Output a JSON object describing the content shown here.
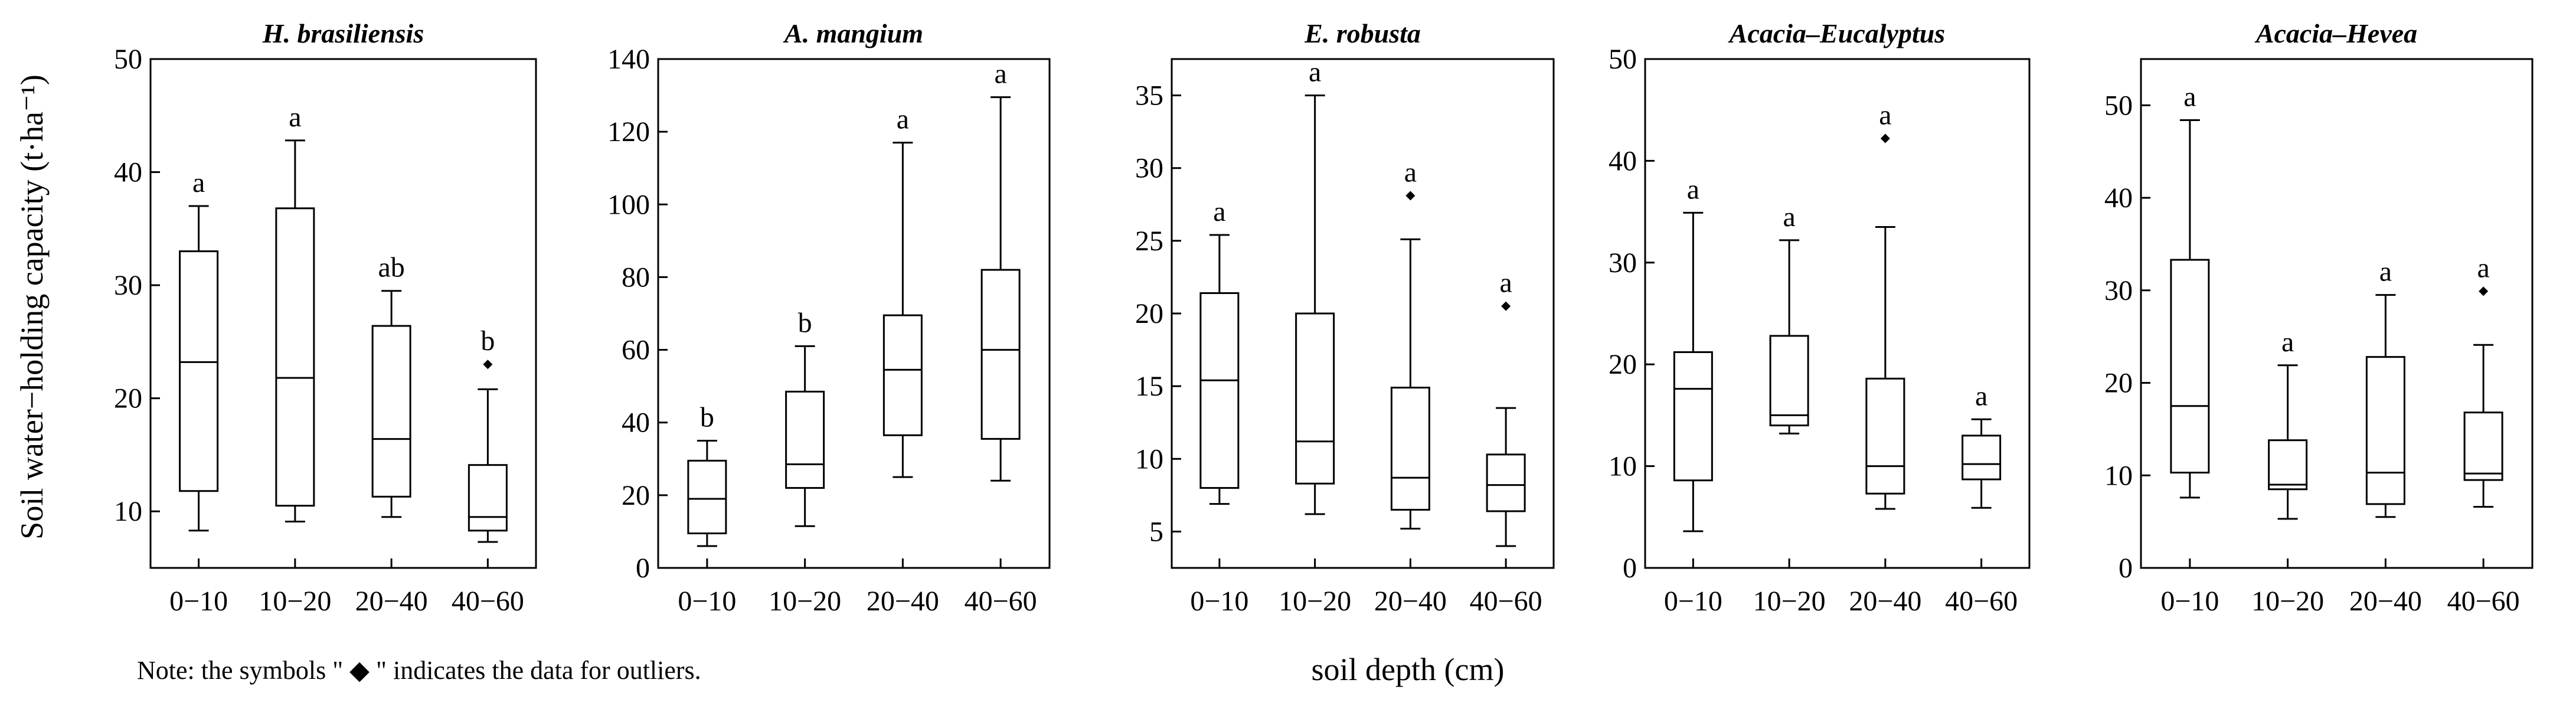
{
  "chart_data": {
    "type": "boxplot",
    "ylabel": "Soil water−holding capacity (t·ha⁻¹)",
    "xlabel": "soil depth (cm)",
    "note": "Note: the symbols \" ◆ \" indicates the data for outliers.",
    "categories": [
      "0−10",
      "10−20",
      "20−40",
      "40−60"
    ],
    "panels": [
      {
        "title": "H. brasiliensis",
        "ylim": [
          5,
          50
        ],
        "yticks": [
          10,
          20,
          30,
          40,
          50
        ],
        "boxes": [
          {
            "min": 8.3,
            "q1": 11.8,
            "median": 23.2,
            "q3": 33.0,
            "max": 37.0,
            "outliers": [],
            "letter": "a"
          },
          {
            "min": 9.1,
            "q1": 10.5,
            "median": 21.8,
            "q3": 36.8,
            "max": 42.8,
            "outliers": [],
            "letter": "a"
          },
          {
            "min": 9.5,
            "q1": 11.3,
            "median": 16.4,
            "q3": 26.4,
            "max": 29.5,
            "outliers": [],
            "letter": "ab"
          },
          {
            "min": 7.3,
            "q1": 8.3,
            "median": 9.5,
            "q3": 14.1,
            "max": 20.8,
            "outliers": [
              23.0
            ],
            "letter": "b"
          }
        ]
      },
      {
        "title": "A. mangium",
        "ylim": [
          0,
          140
        ],
        "yticks": [
          0,
          20,
          40,
          60,
          80,
          100,
          120,
          140
        ],
        "boxes": [
          {
            "min": 6,
            "q1": 9.5,
            "median": 19,
            "q3": 29.5,
            "max": 35,
            "outliers": [],
            "letter": "b"
          },
          {
            "min": 11.5,
            "q1": 22,
            "median": 28.5,
            "q3": 48.5,
            "max": 61,
            "outliers": [],
            "letter": "b"
          },
          {
            "min": 25,
            "q1": 36.5,
            "median": 54.5,
            "q3": 69.5,
            "max": 117,
            "outliers": [],
            "letter": "a"
          },
          {
            "min": 24,
            "q1": 35.5,
            "median": 60,
            "q3": 82,
            "max": 129.5,
            "outliers": [],
            "letter": "a"
          }
        ]
      },
      {
        "title": "E. robusta",
        "ylim": [
          2.5,
          37.5
        ],
        "yticks": [
          5,
          10,
          15,
          20,
          25,
          30,
          35
        ],
        "boxes": [
          {
            "min": 6.9,
            "q1": 8.0,
            "median": 15.4,
            "q3": 21.4,
            "max": 25.4,
            "outliers": [],
            "letter": "a"
          },
          {
            "min": 6.2,
            "q1": 8.3,
            "median": 11.2,
            "q3": 20.0,
            "max": 35.0,
            "outliers": [],
            "letter": "a"
          },
          {
            "min": 5.2,
            "q1": 6.5,
            "median": 8.7,
            "q3": 14.9,
            "max": 25.1,
            "outliers": [
              28.1
            ],
            "letter": "a"
          },
          {
            "min": 4.0,
            "q1": 6.4,
            "median": 8.2,
            "q3": 10.3,
            "max": 13.5,
            "outliers": [
              20.5
            ],
            "letter": "a"
          }
        ]
      },
      {
        "title": "Acacia–Eucalyptus",
        "ylim": [
          0,
          50
        ],
        "yticks": [
          0,
          10,
          20,
          30,
          40,
          50
        ],
        "boxes": [
          {
            "min": 3.6,
            "q1": 8.6,
            "median": 17.6,
            "q3": 21.2,
            "max": 34.9,
            "outliers": [],
            "letter": "a"
          },
          {
            "min": 13.2,
            "q1": 14.0,
            "median": 15.0,
            "q3": 22.8,
            "max": 32.2,
            "outliers": [],
            "letter": "a"
          },
          {
            "min": 5.8,
            "q1": 7.3,
            "median": 10.0,
            "q3": 18.6,
            "max": 33.5,
            "outliers": [
              42.2
            ],
            "letter": "a"
          },
          {
            "min": 5.9,
            "q1": 8.7,
            "median": 10.2,
            "q3": 13.0,
            "max": 14.6,
            "outliers": [],
            "letter": "a"
          }
        ]
      },
      {
        "title": "Acacia–Hevea",
        "ylim": [
          0,
          55
        ],
        "yticks": [
          0,
          10,
          20,
          30,
          40,
          50
        ],
        "boxes": [
          {
            "min": 7.6,
            "q1": 10.3,
            "median": 17.5,
            "q3": 33.3,
            "max": 48.4,
            "outliers": [],
            "letter": "a"
          },
          {
            "min": 5.3,
            "q1": 8.5,
            "median": 9.0,
            "q3": 13.8,
            "max": 21.9,
            "outliers": [],
            "letter": "a"
          },
          {
            "min": 5.5,
            "q1": 6.9,
            "median": 10.3,
            "q3": 22.8,
            "max": 29.5,
            "outliers": [],
            "letter": "a"
          },
          {
            "min": 6.6,
            "q1": 9.5,
            "median": 10.2,
            "q3": 16.8,
            "max": 24.1,
            "outliers": [
              29.9
            ],
            "letter": "a"
          }
        ]
      }
    ]
  }
}
